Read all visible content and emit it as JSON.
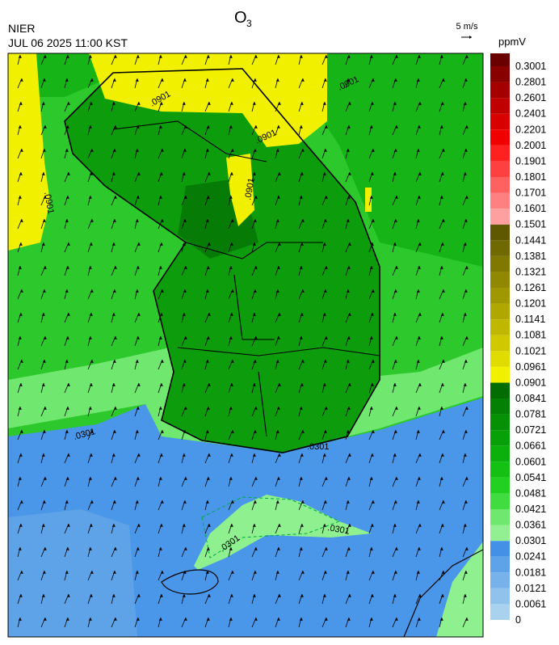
{
  "header": {
    "title": "O",
    "title_sub": "3",
    "agency": "NIER",
    "datetime": "JUL 06 2025 11:00 KST",
    "wind_scale": "5 m/s",
    "unit": "ppmV"
  },
  "colorbar": {
    "ticks": [
      0,
      0.0061,
      0.0121,
      0.0181,
      0.0241,
      0.0301,
      0.0361,
      0.0421,
      0.0481,
      0.0541,
      0.0601,
      0.0661,
      0.0721,
      0.0781,
      0.0841,
      0.0901,
      0.0961,
      0.1021,
      0.1081,
      0.1141,
      0.1201,
      0.1261,
      0.1321,
      0.1381,
      0.1441,
      0.1501,
      0.1601,
      0.1701,
      0.1801,
      0.1901,
      0.2001,
      0.2201,
      0.2401,
      0.2601,
      0.2801,
      0.3001
    ],
    "colors": [
      "#a8d2ee",
      "#90c2ec",
      "#78b2ea",
      "#5ea2e8",
      "#4490e6",
      "#92f092",
      "#70e870",
      "#40dc40",
      "#22d022",
      "#14c014",
      "#0cb00c",
      "#08a008",
      "#069006",
      "#048004",
      "#036c03",
      "#f0f000",
      "#e0dc00",
      "#d0c800",
      "#c0b800",
      "#b0a800",
      "#a09800",
      "#908800",
      "#807800",
      "#706800",
      "#605800",
      "#ffa0a0",
      "#ff8080",
      "#ff6060",
      "#ff4040",
      "#ff2020",
      "#f00000",
      "#d80000",
      "#c00000",
      "#a40000",
      "#880000",
      "#6a0000"
    ]
  },
  "map": {
    "contour_labels": [
      ".0901",
      ".0901",
      ".0901",
      ".0901",
      ".0901",
      ".0301",
      ".0301",
      ".0301",
      ".0301"
    ]
  }
}
